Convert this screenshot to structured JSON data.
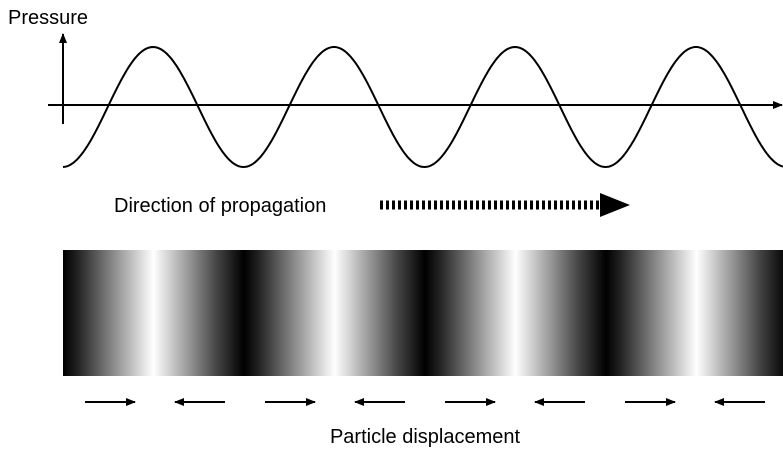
{
  "labels": {
    "pressure": "Pressure",
    "direction": "Direction of propagation",
    "displacement": "Particle displacement"
  }
}
